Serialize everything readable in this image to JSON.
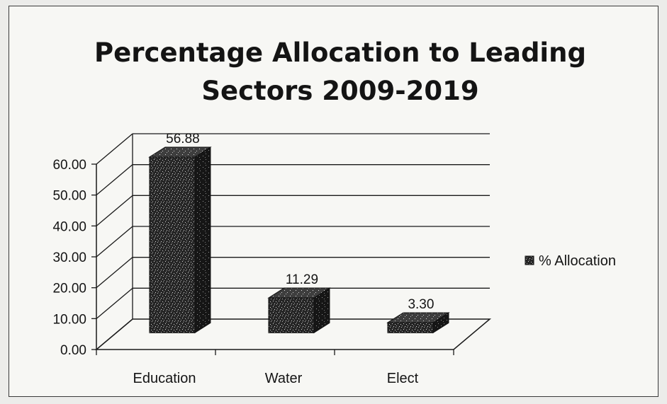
{
  "chart_data": {
    "type": "bar",
    "title_lines": [
      "Percentage Allocation to Leading",
      "Sectors 2009-2019"
    ],
    "categories": [
      "Education",
      "Water",
      "Elect"
    ],
    "series": [
      {
        "name": "% Allocation",
        "values": [
          56.88,
          11.29,
          3.3
        ]
      }
    ],
    "data_labels": [
      "56.88",
      "11.29",
      "3.30"
    ],
    "y_ticks": [
      "0.00",
      "10.00",
      "20.00",
      "30.00",
      "40.00",
      "50.00",
      "60.00"
    ],
    "ylim": [
      0,
      60
    ],
    "grid": true,
    "legend_position": "right",
    "style": "3d-column",
    "bar_color": "#2b2b2b"
  }
}
